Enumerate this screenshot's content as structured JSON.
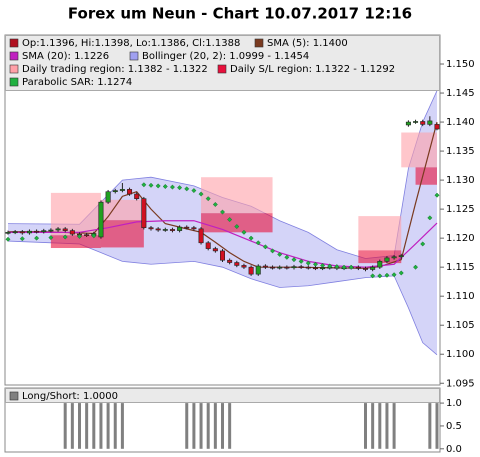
{
  "chart_data": [
    {
      "type": "candlestick",
      "title": "Forex um Neun - Chart 10.07.2017 12:16",
      "ylim": [
        1.0947,
        1.155
      ],
      "yticks": [
        1.095,
        {
          "value": 1.1,
          "label": "1.100"
        },
        1.105,
        {
          "value": 1.11,
          "label": "1.110"
        },
        1.115,
        {
          "value": 1.12,
          "label": "1.120"
        },
        1.125,
        {
          "value": 1.13,
          "label": "1.130"
        },
        1.135,
        {
          "value": 1.14,
          "label": "1.140"
        },
        1.145,
        {
          "value": 1.15,
          "label": "1.150"
        }
      ],
      "series": [
        {
          "name": "Op:1.1396, Hi:1.1398, Lo:1.1386, Cl:1.1388",
          "type": "candlestick",
          "color": "#b01020",
          "up_color": "#20a020",
          "down_color": "#d01020",
          "open": [
            1.1209,
            1.121,
            1.1211,
            1.1209,
            1.1212,
            1.1211,
            1.1213,
            1.1214,
            1.1216,
            1.1213,
            1.1207,
            1.1206,
            1.1205,
            1.1202,
            1.1262,
            1.128,
            1.1282,
            1.1284,
            1.1276,
            1.1268,
            1.1218,
            1.1216,
            1.1214,
            1.1215,
            1.1213,
            1.1219,
            1.1218,
            1.1216,
            1.1192,
            1.1182,
            1.1178,
            1.1162,
            1.1158,
            1.1153,
            1.115,
            1.1138,
            1.1152,
            1.115,
            1.1149,
            1.115,
            1.1149,
            1.1151,
            1.115,
            1.1149,
            1.1148,
            1.1149,
            1.115,
            1.1148,
            1.1149,
            1.115,
            1.1148,
            1.1146,
            1.115,
            1.116,
            1.1166,
            1.1168,
            1.1395,
            1.14,
            1.1401,
            1.1396,
            1.1396
          ],
          "high": [
            1.1213,
            1.1214,
            1.1214,
            1.1215,
            1.1215,
            1.1216,
            1.1217,
            1.1219,
            1.1219,
            1.1216,
            1.121,
            1.1209,
            1.1211,
            1.1265,
            1.1283,
            1.1285,
            1.1295,
            1.1287,
            1.1279,
            1.1271,
            1.1221,
            1.1219,
            1.1218,
            1.1218,
            1.1222,
            1.1222,
            1.1221,
            1.1219,
            1.1195,
            1.1185,
            1.1181,
            1.1165,
            1.1161,
            1.1156,
            1.1153,
            1.1155,
            1.1155,
            1.1153,
            1.1153,
            1.1153,
            1.1154,
            1.1154,
            1.1153,
            1.1152,
            1.1152,
            1.1153,
            1.1153,
            1.1152,
            1.1153,
            1.1153,
            1.1151,
            1.1153,
            1.1163,
            1.1169,
            1.1171,
            1.1173,
            1.1403,
            1.1404,
            1.1404,
            1.141,
            1.1398
          ],
          "low": [
            1.1206,
            1.1207,
            1.1206,
            1.1206,
            1.1208,
            1.1208,
            1.121,
            1.1211,
            1.121,
            1.1204,
            1.1203,
            1.1202,
            1.1202,
            1.1199,
            1.1259,
            1.1277,
            1.1279,
            1.1273,
            1.1265,
            1.1215,
            1.1213,
            1.1211,
            1.1211,
            1.121,
            1.121,
            1.1215,
            1.1213,
            1.1189,
            1.1179,
            1.1175,
            1.1159,
            1.1155,
            1.115,
            1.1147,
            1.1135,
            1.1135,
            1.1147,
            1.1146,
            1.1146,
            1.1146,
            1.1146,
            1.1147,
            1.1146,
            1.1145,
            1.1145,
            1.1146,
            1.1145,
            1.1145,
            1.1146,
            1.1145,
            1.1143,
            1.1143,
            1.1147,
            1.1157,
            1.1163,
            1.1165,
            1.1392,
            1.1397,
            1.1393,
            1.1393,
            1.1386
          ],
          "close": [
            1.121,
            1.1211,
            1.1209,
            1.1212,
            1.1211,
            1.1213,
            1.1214,
            1.1216,
            1.1213,
            1.1207,
            1.1206,
            1.1205,
            1.1208,
            1.1262,
            1.128,
            1.1282,
            1.1284,
            1.1276,
            1.1268,
            1.1218,
            1.1216,
            1.1214,
            1.1215,
            1.1213,
            1.1219,
            1.1218,
            1.1216,
            1.1192,
            1.1182,
            1.1178,
            1.1162,
            1.1158,
            1.1153,
            1.115,
            1.1138,
            1.1152,
            1.115,
            1.1149,
            1.115,
            1.1149,
            1.1151,
            1.115,
            1.1149,
            1.1148,
            1.1149,
            1.115,
            1.1148,
            1.1149,
            1.115,
            1.1148,
            1.1146,
            1.115,
            1.116,
            1.1166,
            1.1168,
            1.117,
            1.14,
            1.1401,
            1.1396,
            1.1402,
            1.1388
          ]
        },
        {
          "name": "SMA (5): 1.1400",
          "type": "line",
          "color": "#7a3a20",
          "x": [
            0,
            5,
            10,
            12,
            14,
            16,
            18,
            20,
            22,
            25,
            27,
            29,
            31,
            33,
            35,
            40,
            45,
            50,
            52,
            55,
            57,
            60
          ],
          "values": [
            1.1211,
            1.1211,
            1.1209,
            1.1208,
            1.1237,
            1.1272,
            1.128,
            1.125,
            1.1225,
            1.1216,
            1.121,
            1.1193,
            1.1175,
            1.116,
            1.115,
            1.115,
            1.1149,
            1.1148,
            1.1151,
            1.1163,
            1.126,
            1.14
          ]
        },
        {
          "name": "SMA (20): 1.1226",
          "type": "line",
          "color": "#c020c0",
          "x": [
            0,
            10,
            14,
            18,
            22,
            26,
            30,
            34,
            38,
            42,
            46,
            50,
            54,
            57,
            60
          ],
          "values": [
            1.121,
            1.121,
            1.1218,
            1.1228,
            1.123,
            1.123,
            1.1215,
            1.1195,
            1.1175,
            1.116,
            1.1152,
            1.115,
            1.1155,
            1.119,
            1.1226
          ]
        },
        {
          "name": "Bollinger (20, 2): 1.0999 - 1.1454",
          "type": "band",
          "color": "#a0a0f0",
          "x": [
            0,
            10,
            13,
            16,
            20,
            26,
            30,
            34,
            38,
            42,
            46,
            50,
            54,
            56,
            58,
            60
          ],
          "upper": [
            1.1225,
            1.1224,
            1.1262,
            1.13,
            1.1305,
            1.129,
            1.127,
            1.1255,
            1.123,
            1.121,
            1.118,
            1.1165,
            1.117,
            1.132,
            1.14,
            1.1454
          ],
          "lower": [
            1.1195,
            1.119,
            1.1175,
            1.116,
            1.1155,
            1.116,
            1.115,
            1.113,
            1.1115,
            1.1118,
            1.1125,
            1.1132,
            1.1135,
            1.108,
            1.102,
            1.0999
          ]
        },
        {
          "name": "Daily trading region: 1.1382 - 1.1322",
          "type": "region",
          "color": "#ffa0a8",
          "start": [
            6,
            13,
            27,
            49,
            55
          ],
          "end": [
            13,
            19,
            37,
            55,
            60
          ],
          "upper": [
            1.1278,
            1.1266,
            1.1305,
            1.1238,
            1.1382
          ],
          "lower": [
            1.1205,
            1.1231,
            1.1243,
            1.1179,
            1.1322
          ]
        },
        {
          "name": "Daily S/L region: 1.1322 - 1.1292",
          "type": "region",
          "color": "#e8103c",
          "start": [
            6,
            13,
            27,
            49,
            57
          ],
          "end": [
            13,
            19,
            37,
            55,
            60
          ],
          "upper": [
            1.1205,
            1.1231,
            1.1243,
            1.1179,
            1.1322
          ],
          "lower": [
            1.1183,
            1.1184,
            1.121,
            1.1157,
            1.1292
          ]
        },
        {
          "name": "Parabolic SAR: 1.1274",
          "type": "scatter",
          "color": "#20b040",
          "x": [
            0,
            2,
            4,
            6,
            8,
            10,
            12,
            19,
            20,
            21,
            22,
            23,
            24,
            25,
            26,
            27,
            28,
            29,
            30,
            31,
            32,
            33,
            34,
            35,
            36,
            37,
            38,
            39,
            40,
            41,
            42,
            43,
            44,
            45,
            46,
            47,
            48,
            51,
            52,
            53,
            54,
            55,
            57,
            58,
            59,
            60
          ],
          "values": [
            1.1198,
            1.1199,
            1.12,
            1.1201,
            1.1202,
            1.1203,
            1.1204,
            1.1292,
            1.1291,
            1.129,
            1.1289,
            1.1288,
            1.1287,
            1.1285,
            1.1282,
            1.1276,
            1.1268,
            1.1258,
            1.1245,
            1.1232,
            1.122,
            1.121,
            1.12,
            1.1192,
            1.1185,
            1.1178,
            1.1172,
            1.1167,
            1.1163,
            1.116,
            1.1157,
            1.1155,
            1.1153,
            1.1152,
            1.1151,
            1.115,
            1.115,
            1.1135,
            1.1135,
            1.1136,
            1.1137,
            1.114,
            1.115,
            1.119,
            1.1235,
            1.1274
          ]
        }
      ]
    },
    {
      "type": "bar",
      "ylim": [
        -0.07,
        1.33
      ],
      "yticks": [
        {
          "value": 0,
          "label": "0.0"
        },
        0.5,
        {
          "value": 1,
          "label": "1.0"
        }
      ],
      "series": [
        {
          "name": "Long/Short: 1.0000",
          "color": "#808080",
          "values": [
            0,
            0,
            0,
            0,
            0,
            0,
            0,
            0,
            1,
            1,
            1,
            1,
            1,
            1,
            1,
            1,
            1,
            0,
            0,
            0,
            0,
            0,
            0,
            0,
            0,
            1,
            1,
            1,
            1,
            1,
            1,
            1,
            0,
            0,
            0,
            0,
            0,
            0,
            0,
            0,
            0,
            0,
            0,
            0,
            0,
            0,
            0,
            0,
            0,
            0,
            1,
            1,
            1,
            1,
            1,
            0,
            0,
            0,
            0,
            1,
            1
          ]
        }
      ]
    }
  ]
}
